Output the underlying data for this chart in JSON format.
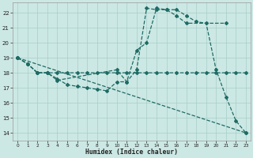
{
  "xlabel": "Humidex (Indice chaleur)",
  "bg_color": "#cce8e4",
  "grid_color": "#a8cdc8",
  "line_color": "#1f6b65",
  "xlim": [
    -0.5,
    23.5
  ],
  "ylim": [
    13.5,
    22.7
  ],
  "yticks": [
    14,
    15,
    16,
    17,
    18,
    19,
    20,
    21,
    22
  ],
  "xticks": [
    0,
    1,
    2,
    3,
    4,
    5,
    6,
    7,
    8,
    9,
    10,
    11,
    12,
    13,
    14,
    15,
    16,
    17,
    18,
    19,
    20,
    21,
    22,
    23
  ],
  "series": [
    {
      "x": [
        0,
        1,
        2,
        3,
        4,
        10,
        11,
        12,
        13,
        14,
        15,
        16,
        17,
        18,
        19,
        20,
        21,
        22,
        23
      ],
      "y": [
        19.0,
        18.6,
        18.0,
        18.0,
        17.5,
        18.2,
        17.4,
        19.5,
        20.0,
        22.3,
        22.2,
        22.2,
        21.8,
        21.4,
        21.3,
        18.2,
        16.4,
        14.8,
        14.0
      ]
    },
    {
      "x": [
        0,
        1,
        2,
        3,
        4,
        5,
        6,
        7,
        8,
        9,
        10,
        11,
        12,
        13,
        14,
        15,
        16,
        17,
        18,
        19,
        20,
        21,
        22,
        23
      ],
      "y": [
        19.0,
        18.6,
        18.0,
        18.0,
        18.0,
        18.0,
        18.0,
        18.0,
        18.0,
        18.0,
        18.0,
        18.0,
        18.0,
        18.0,
        18.0,
        18.0,
        18.0,
        18.0,
        18.0,
        18.0,
        18.0,
        18.0,
        18.0,
        18.0
      ]
    },
    {
      "x": [
        0,
        1,
        2,
        3,
        4,
        5,
        6,
        7,
        8,
        9,
        10,
        11,
        12,
        13,
        14,
        15,
        16,
        17,
        21
      ],
      "y": [
        19.0,
        18.6,
        18.0,
        18.0,
        17.6,
        17.2,
        17.1,
        17.0,
        16.9,
        16.8,
        17.4,
        17.4,
        18.2,
        22.3,
        22.2,
        22.2,
        21.8,
        21.3,
        21.3
      ]
    },
    {
      "x": [
        0,
        23
      ],
      "y": [
        19.0,
        14.0
      ]
    }
  ]
}
